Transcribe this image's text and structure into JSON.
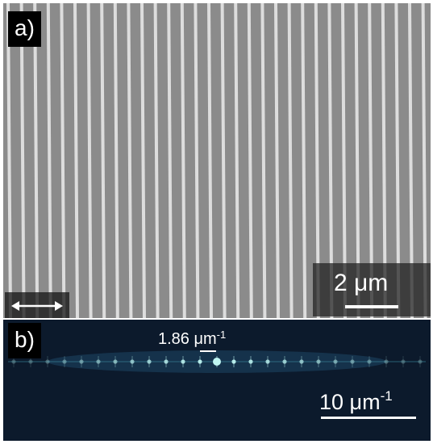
{
  "figure": {
    "panel_a": {
      "label": "a)",
      "scale_bar_text": "2 μm",
      "arrow_icon": "double-headed-arrow"
    },
    "panel_b": {
      "label": "b)",
      "peak_spacing_value": "1.86 μm",
      "peak_spacing_exponent": "-1",
      "scale_bar_value": "10 μm",
      "scale_bar_exponent": "-1"
    },
    "colors": {
      "sem_background": "#8b8b8b",
      "sem_lines": "#e6e6e6",
      "fft_background": "#0c1a2c",
      "fft_peaks": "#bff6f2"
    }
  }
}
